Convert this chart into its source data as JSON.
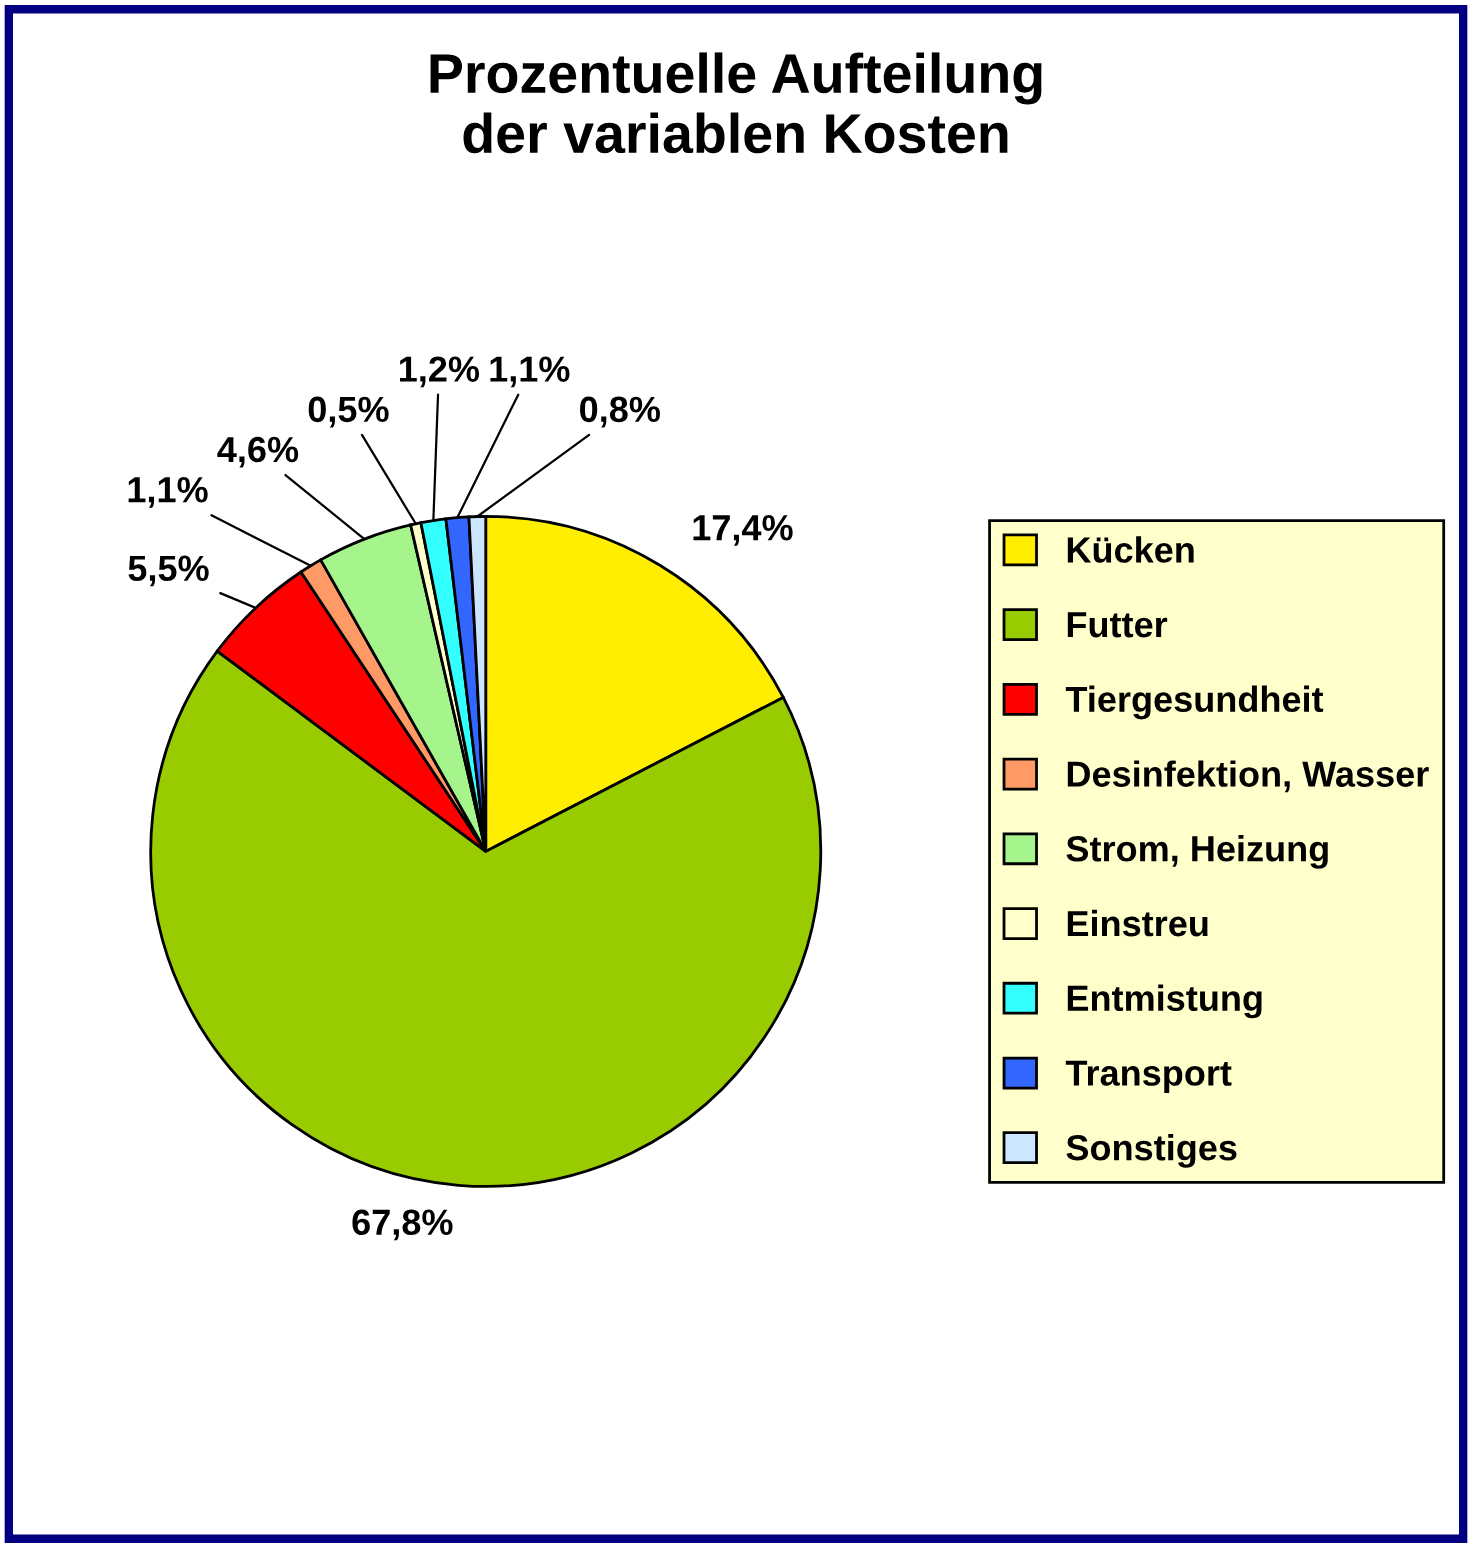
{
  "chart_data": {
    "type": "pie",
    "title": "Prozentuelle Aufteilung\nder variablen Kosten",
    "categories": [
      "Kücken",
      "Futter",
      "Tiergesundheit",
      "Desinfektion, Wasser",
      "Strom, Heizung",
      "Einstreu",
      "Entmistung",
      "Transport",
      "Sonstiges"
    ],
    "values": [
      17.4,
      67.8,
      5.5,
      1.1,
      4.6,
      0.5,
      1.2,
      1.1,
      0.8
    ],
    "value_labels": [
      "17,4%",
      "67,8%",
      "5,5%",
      "1,1%",
      "4,6%",
      "0,5%",
      "1,2%",
      "1,1%",
      "0,8%"
    ],
    "colors": [
      "#ffee00",
      "#99cc00",
      "#ff0000",
      "#ff9966",
      "#a6f58c",
      "#ffffcc",
      "#33ffff",
      "#3366ff",
      "#cce6ff"
    ],
    "legend": "right"
  }
}
